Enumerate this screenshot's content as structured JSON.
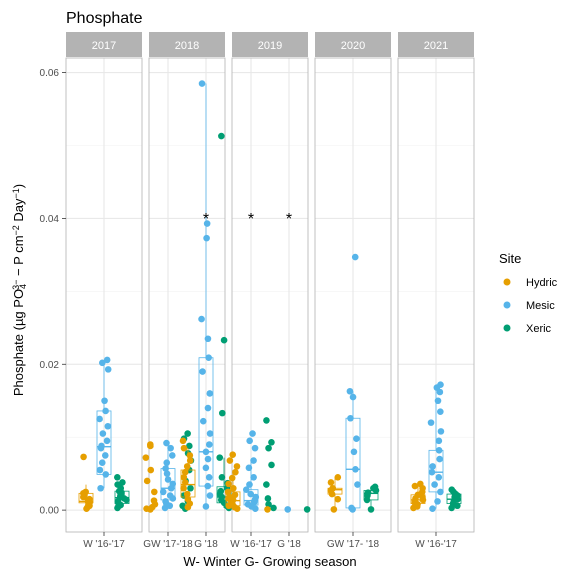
{
  "chart_data": {
    "type": "boxplot-jitter-faceted",
    "title": "Phosphate",
    "ylabel": "Phosphate (µg PO4 3− − P cm−2 Day−1)",
    "ylabel_parts": {
      "pre": "Phosphate (µg PO",
      "sub1": "4",
      "sup1": "3−",
      "mid": " − P cm",
      "sup2": "−2",
      "mid2": " Day",
      "sup3": "−1",
      "post": ")"
    },
    "xlabel": "W- Winter G- Growing season",
    "ylim": [
      -0.003,
      0.062
    ],
    "yticks": [
      0.0,
      0.02,
      0.04,
      0.06
    ],
    "ytick_labels": [
      "0.00",
      "0.02",
      "0.04",
      "0.06"
    ],
    "grid": true,
    "legend": {
      "title": "Site",
      "position": "right",
      "entries": [
        "Hydric",
        "Mesic",
        "Xeric"
      ]
    },
    "colors": {
      "Hydric": "#E69F00",
      "Mesic": "#56B4E9",
      "Xeric": "#009E73",
      "strip": "#b3b3b3",
      "grid": "#e6e6e6",
      "panel_border": "#b3b3b3"
    },
    "facets": [
      {
        "label": "2017",
        "x_ticks": [
          "W '16-'17"
        ],
        "groups": [
          {
            "season": "W '16-'17",
            "site": "Hydric",
            "box": [
              0.0005,
              0.001,
              0.0012,
              0.0023,
              0.0035
            ],
            "points": [
              0.0002,
              0.0004,
              0.0006,
              0.0008,
              0.001,
              0.0011,
              0.0012,
              0.0013,
              0.0015,
              0.0018,
              0.002,
              0.0023,
              0.0025,
              0.0073
            ]
          },
          {
            "season": "W '16-'17",
            "site": "Mesic",
            "box": [
              0.003,
              0.0049,
              0.0087,
              0.0136,
              0.0202
            ],
            "points": [
              0.003,
              0.0049,
              0.0055,
              0.0065,
              0.0075,
              0.0085,
              0.0088,
              0.0095,
              0.0105,
              0.0115,
              0.0125,
              0.0136,
              0.015,
              0.0193,
              0.0202,
              0.0206
            ]
          },
          {
            "season": "W '16-'17",
            "site": "Xeric",
            "box": [
              0.0004,
              0.0009,
              0.0017,
              0.0026,
              0.0038
            ],
            "points": [
              0.0003,
              0.0005,
              0.0007,
              0.0009,
              0.0012,
              0.0014,
              0.0016,
              0.0018,
              0.002,
              0.0022,
              0.0024,
              0.0026,
              0.003,
              0.0035,
              0.0038,
              0.0045
            ]
          }
        ]
      },
      {
        "label": "2018",
        "x_ticks": [
          "GW '17-'18",
          "G '18"
        ],
        "groups": [
          {
            "season": "GW '17-'18",
            "site": "Hydric",
            "points": [
              0.0001,
              0.0002,
              0.0004,
              0.0008,
              0.0013,
              0.0025,
              0.004,
              0.0055,
              0.0072,
              0.0088,
              0.009
            ]
          },
          {
            "season": "GW '17-'18",
            "site": "Mesic",
            "box": [
              0.0003,
              0.0014,
              0.003,
              0.0057,
              0.0092
            ],
            "points": [
              0.0003,
              0.0006,
              0.0009,
              0.0012,
              0.0016,
              0.002,
              0.0025,
              0.003,
              0.0036,
              0.0042,
              0.005,
              0.0057,
              0.0065,
              0.0075,
              0.0085,
              0.0092
            ]
          },
          {
            "season": "GW '17-'18",
            "site": "Xeric",
            "points": [
              0.0002,
              0.0006,
              0.0012,
              0.002,
              0.003,
              0.004,
              0.0055,
              0.0068,
              0.0078,
              0.0088,
              0.0098,
              0.0105
            ]
          },
          {
            "season": "G '18",
            "site": "Hydric",
            "box": [
              0.0003,
              0.0018,
              0.0035,
              0.0055,
              0.0085
            ],
            "points": [
              0.0004,
              0.0009,
              0.0015,
              0.0022,
              0.003,
              0.0038,
              0.0045,
              0.0052,
              0.006,
              0.0068,
              0.0075,
              0.0085,
              0.0095
            ]
          },
          {
            "season": "G '18",
            "site": "Mesic",
            "box": [
              0.0003,
              0.0033,
              0.008,
              0.0209,
              0.0585
            ],
            "points": [
              0.0005,
              0.002,
              0.0033,
              0.0045,
              0.0058,
              0.007,
              0.008,
              0.009,
              0.0105,
              0.0122,
              0.014,
              0.016,
              0.019,
              0.0209,
              0.0235,
              0.0262,
              0.0373,
              0.0393,
              0.0585
            ]
          },
          {
            "season": "G '18",
            "site": "Xeric",
            "box": [
              0.0003,
              0.001,
              0.0018,
              0.0032,
              0.0072
            ],
            "points": [
              0.0003,
              0.0006,
              0.001,
              0.0014,
              0.0018,
              0.0022,
              0.0026,
              0.003,
              0.0037,
              0.0045,
              0.0072,
              0.0133,
              0.0233,
              0.0513
            ]
          }
        ],
        "annotations": [
          {
            "x": "G '18",
            "y": 0.0405,
            "text": "*"
          }
        ]
      },
      {
        "label": "2019",
        "x_ticks": [
          "W '16-'17",
          "G '18"
        ],
        "groups": [
          {
            "season": "W '16-'17",
            "site": "Hydric",
            "box": [
              0.0002,
              0.0006,
              0.0013,
              0.0025,
              0.0055
            ],
            "points": [
              0.0002,
              0.0004,
              0.0006,
              0.0008,
              0.001,
              0.0012,
              0.0014,
              0.0016,
              0.0018,
              0.0021,
              0.0025,
              0.003,
              0.0036,
              0.0044,
              0.0052,
              0.006,
              0.0068,
              0.0076
            ]
          },
          {
            "season": "W '16-'17",
            "site": "Mesic",
            "box": [
              0.0002,
              0.0007,
              0.0013,
              0.0028,
              0.0068
            ],
            "points": [
              0.0002,
              0.0005,
              0.0008,
              0.0011,
              0.0014,
              0.0018,
              0.0022,
              0.0028,
              0.0035,
              0.0045,
              0.0058,
              0.0068,
              0.0085,
              0.0095,
              0.0105
            ]
          },
          {
            "season": "W '16-'17",
            "site": "Xeric",
            "points": [
              0.0003,
              0.0008,
              0.0016,
              0.0035,
              0.0062,
              0.0085,
              0.0093,
              0.0123
            ]
          },
          {
            "season": "G '18",
            "site": "Hydric",
            "points": [
              0.0001
            ]
          },
          {
            "season": "G '18",
            "site": "Mesic",
            "points": [
              0.0001
            ]
          },
          {
            "season": "G '18",
            "site": "Xeric",
            "points": [
              0.0001
            ]
          }
        ],
        "annotations": [
          {
            "x": "W '16-'17",
            "y": 0.0405,
            "text": "*"
          },
          {
            "x": "G '18",
            "y": 0.0405,
            "text": "*"
          }
        ]
      },
      {
        "label": "2020",
        "x_ticks": [
          "GW '17- '18"
        ],
        "groups": [
          {
            "season": "GW '17- '18",
            "site": "Hydric",
            "box": [
              0.0001,
              0.0022,
              0.0028,
              0.003,
              0.0045
            ],
            "points": [
              0.0001,
              0.0015,
              0.0022,
              0.0027,
              0.003,
              0.0038,
              0.0045
            ]
          },
          {
            "season": "GW '17- '18",
            "site": "Mesic",
            "box": [
              0.0001,
              0.0003,
              0.0056,
              0.0126,
              0.0163
            ],
            "points": [
              0.0001,
              0.0003,
              0.0035,
              0.0056,
              0.008,
              0.0098,
              0.0126,
              0.0155,
              0.0163,
              0.0347
            ]
          },
          {
            "season": "GW '17- '18",
            "site": "Xeric",
            "box": [
              0.0001,
              0.0014,
              0.0023,
              0.0027,
              0.0032
            ],
            "points": [
              0.0001,
              0.0014,
              0.002,
              0.0024,
              0.0027,
              0.003,
              0.0032
            ]
          }
        ]
      },
      {
        "label": "2021",
        "x_ticks": [
          "W '16-'17"
        ],
        "groups": [
          {
            "season": "W '16-'17",
            "site": "Hydric",
            "box": [
              0.0003,
              0.0009,
              0.0014,
              0.0021,
              0.0033
            ],
            "points": [
              0.0003,
              0.0005,
              0.0008,
              0.001,
              0.0012,
              0.0014,
              0.0016,
              0.0018,
              0.0021,
              0.0025,
              0.003,
              0.0033,
              0.0036
            ]
          },
          {
            "season": "W '16-'17",
            "site": "Mesic",
            "box": [
              0.0002,
              0.0025,
              0.0052,
              0.0082,
              0.0168
            ],
            "points": [
              0.0002,
              0.0012,
              0.0025,
              0.0035,
              0.0045,
              0.0052,
              0.006,
              0.007,
              0.0082,
              0.0095,
              0.0108,
              0.012,
              0.0135,
              0.015,
              0.0162,
              0.0168,
              0.0172
            ]
          },
          {
            "season": "W '16-'17",
            "site": "Xeric",
            "box": [
              0.0003,
              0.0009,
              0.0015,
              0.0022,
              0.0028
            ],
            "points": [
              0.0003,
              0.0006,
              0.0009,
              0.0012,
              0.0015,
              0.0018,
              0.002,
              0.0022,
              0.0025,
              0.0028
            ]
          }
        ]
      }
    ]
  }
}
